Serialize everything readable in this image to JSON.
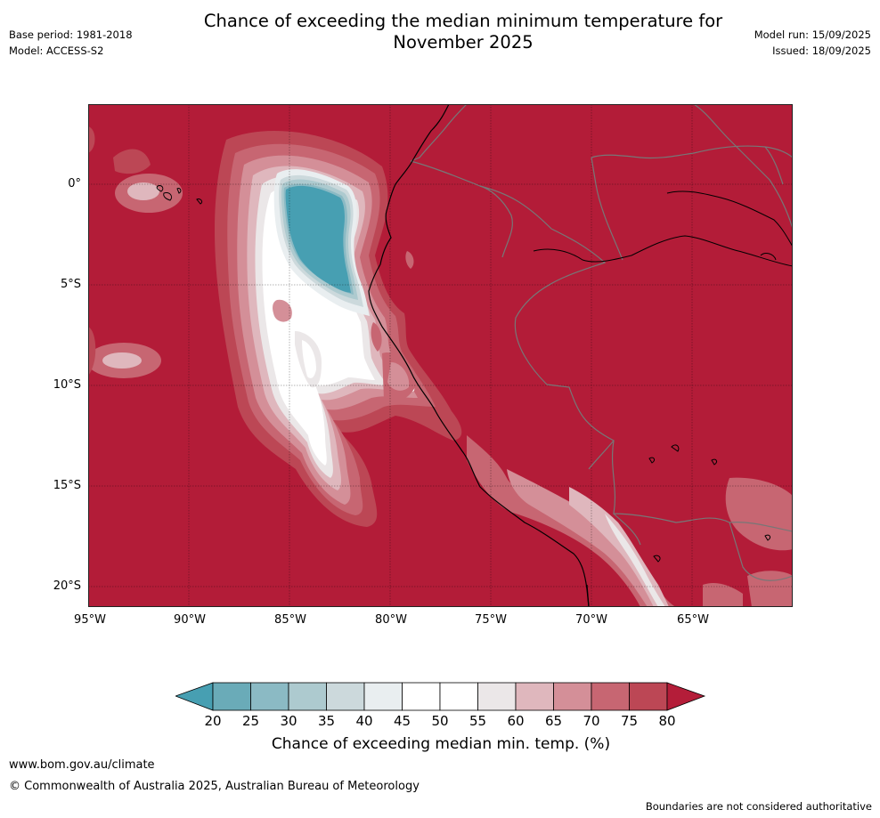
{
  "title_line1": "Chance of exceeding the median minimum temperature for",
  "title_line2": "November 2025",
  "base_period": "Base period: 1981-2018",
  "model": "Model: ACCESS-S2",
  "model_run": "Model run: 15/09/2025",
  "issued": "Issued: 18/09/2025",
  "map": {
    "lon_range": [
      -95,
      -60
    ],
    "lat_range": [
      -21,
      4
    ],
    "lat_labels": [
      "0°",
      "5°S",
      "10°S",
      "15°S",
      "20°S"
    ],
    "lon_labels": [
      "95°W",
      "90°W",
      "85°W",
      "80°W",
      "75°W",
      "70°W",
      "65°W"
    ]
  },
  "colorbar": {
    "ticks": [
      "20",
      "25",
      "30",
      "35",
      "40",
      "45",
      "50",
      "55",
      "60",
      "65",
      "70",
      "75",
      "80"
    ],
    "colors": [
      "#479fb2",
      "#6aabb8",
      "#8bbac4",
      "#adcacf",
      "#ccd9dc",
      "#e9eef0",
      "#ffffff",
      "#ffffff",
      "#ebe7e8",
      "#dfb7bd",
      "#d48f98",
      "#c76672",
      "#bc4755",
      "#b41d39"
    ],
    "label": "Chance of exceeding median min. temp. (%)"
  },
  "footer": {
    "url": "www.bom.gov.au/climate",
    "copyright": "© Commonwealth of Australia 2025, Australian Bureau of Meteorology",
    "disclaimer": "Boundaries are not considered authoritative"
  }
}
